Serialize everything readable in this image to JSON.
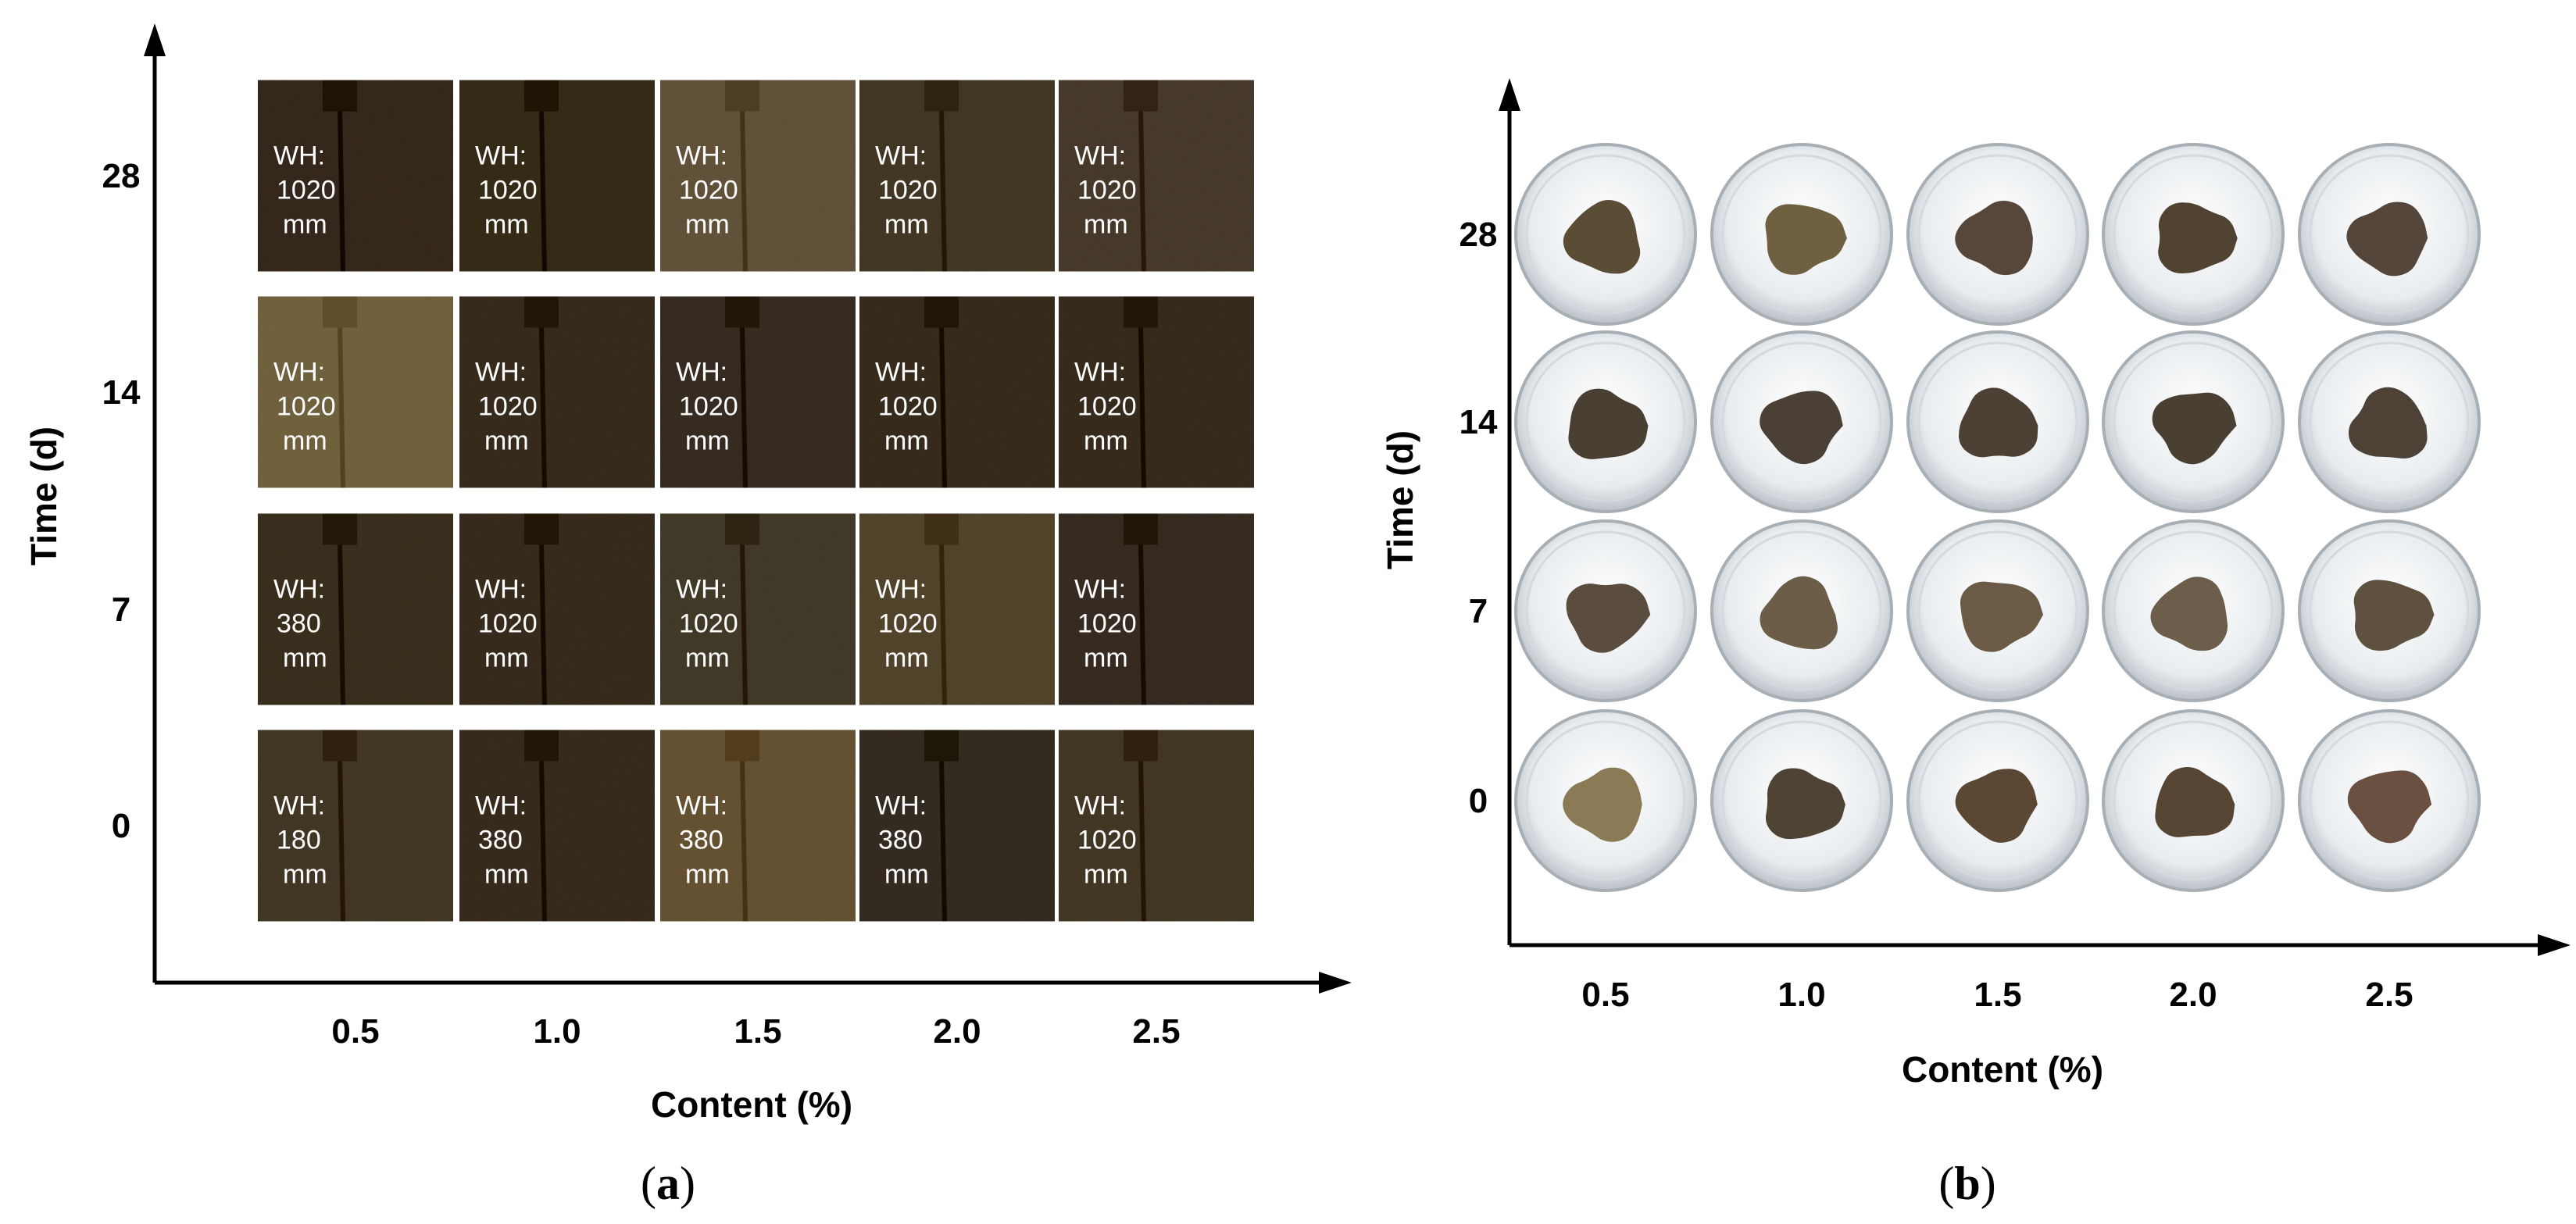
{
  "figure": {
    "panel_a": {
      "caption_letter": "a",
      "x_axis_title": "Content (%)",
      "y_axis_title": "Time (d)",
      "x_ticks": [
        "0.5",
        "1.0",
        "1.5",
        "2.0",
        "2.5"
      ],
      "y_ticks": [
        "28",
        "14",
        "7",
        "0"
      ],
      "wh_prefix": "WH:",
      "wh_unit": "mm",
      "grid": [
        {
          "time": "28",
          "values": [
            "1020",
            "1020",
            "1020",
            "1020",
            "1020"
          ]
        },
        {
          "time": "14",
          "values": [
            "1020",
            "1020",
            "1020",
            "1020",
            "1020"
          ]
        },
        {
          "time": "7",
          "values": [
            "380",
            "1020",
            "1020",
            "1020",
            "1020"
          ]
        },
        {
          "time": "0",
          "values": [
            "180",
            "380",
            "380",
            "380",
            "1020"
          ]
        }
      ],
      "specimen_colors": [
        [
          "#3a2f20",
          "#3b301f",
          "#6a5a40",
          "#4a3e2c",
          "#4d4030"
        ],
        [
          "#7a6a45",
          "#3e3322",
          "#3d3325",
          "#3c3224",
          "#3e3223"
        ],
        [
          "#3f3424",
          "#3d3222",
          "#4a3f2d",
          "#5a4b32",
          "#3d3325"
        ],
        [
          "#4a3d2a",
          "#3e3322",
          "#6e5a38",
          "#3b3226",
          "#4a3d2b"
        ]
      ]
    },
    "panel_b": {
      "caption_letter": "b",
      "x_axis_title": "Content (%)",
      "y_axis_title": "Time (d)",
      "x_ticks": [
        "0.5",
        "1.0",
        "1.5",
        "2.0",
        "2.5"
      ],
      "y_ticks": [
        "28",
        "14",
        "7",
        "0"
      ],
      "dish_colors": [
        [
          "#5b4c36",
          "#6e6040",
          "#56473a",
          "#504332",
          "#54463a"
        ],
        [
          "#4a3f33",
          "#4b4036",
          "#4c4134",
          "#4a3f33",
          "#4d4235"
        ],
        [
          "#5a4d40",
          "#6b5d48",
          "#6a5a46",
          "#6c5e4a",
          "#5e5140"
        ],
        [
          "#8a7a55",
          "#4f4334",
          "#5a4835",
          "#574634",
          "#6a5040"
        ]
      ]
    }
  }
}
